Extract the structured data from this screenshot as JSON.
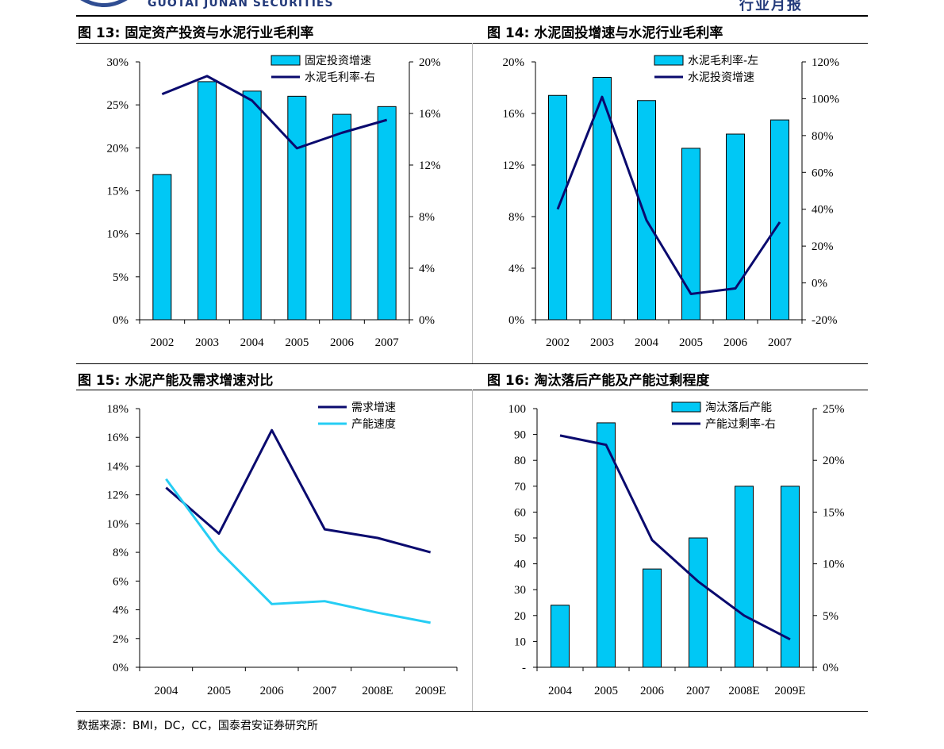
{
  "header": {
    "brand": "GUOTAI JUNAN SECURITIES",
    "report_type": "行业月报"
  },
  "colors": {
    "bar": "#00c8f5",
    "line_dark": "#0a0a6e",
    "line_light": "#25cdf4"
  },
  "source": "数据来源：BMI，DC，CC，国泰君安证券研究所",
  "chart_data": [
    {
      "type": "bar",
      "title_num": "图 13:",
      "title": "固定资产投资与水泥行业毛利率",
      "categories": [
        "2002",
        "2003",
        "2004",
        "2005",
        "2006",
        "2007"
      ],
      "series": [
        {
          "name": "固定投资增速",
          "kind": "bar",
          "axis": "left",
          "values": [
            16.9,
            27.7,
            26.6,
            26.0,
            23.9,
            24.8
          ]
        },
        {
          "name": "水泥毛利率-右",
          "kind": "line",
          "axis": "right",
          "values": [
            17.5,
            18.9,
            17.0,
            13.3,
            14.5,
            15.5
          ]
        }
      ],
      "left_axis": {
        "ylim": [
          0,
          30
        ],
        "ticks": [
          0,
          5,
          10,
          15,
          20,
          25,
          30
        ],
        "tick_labels": [
          "0%",
          "5%",
          "10%",
          "15%",
          "20%",
          "25%",
          "30%"
        ]
      },
      "right_axis": {
        "ylim": [
          0,
          20
        ],
        "ticks": [
          0,
          4,
          8,
          12,
          16,
          20
        ],
        "tick_labels": [
          "0%",
          "4%",
          "8%",
          "12%",
          "16%",
          "20%"
        ]
      },
      "legend": "top-right"
    },
    {
      "type": "bar",
      "title_num": "图 14:",
      "title": "水泥固投增速与水泥行业毛利率",
      "categories": [
        "2002",
        "2003",
        "2004",
        "2005",
        "2006",
        "2007"
      ],
      "series": [
        {
          "name": "水泥毛利率-左",
          "kind": "bar",
          "axis": "left",
          "values": [
            17.4,
            18.8,
            17.0,
            13.3,
            14.4,
            15.5
          ]
        },
        {
          "name": "水泥投资增速",
          "kind": "line",
          "axis": "right",
          "values": [
            40,
            101,
            34,
            -6,
            -3,
            33
          ]
        }
      ],
      "left_axis": {
        "ylim": [
          0,
          20
        ],
        "ticks": [
          0,
          4,
          8,
          12,
          16,
          20
        ],
        "tick_labels": [
          "0%",
          "4%",
          "8%",
          "12%",
          "16%",
          "20%"
        ]
      },
      "right_axis": {
        "ylim": [
          -20,
          120
        ],
        "ticks": [
          -20,
          0,
          20,
          40,
          60,
          80,
          100,
          120
        ],
        "tick_labels": [
          "-20%",
          "0%",
          "20%",
          "40%",
          "60%",
          "80%",
          "100%",
          "120%"
        ]
      },
      "legend": "top-right"
    },
    {
      "type": "line",
      "title_num": "图 15:",
      "title": "水泥产能及需求增速对比",
      "categories": [
        "2004",
        "2005",
        "2006",
        "2007",
        "2008E",
        "2009E"
      ],
      "series": [
        {
          "name": "需求增速",
          "kind": "line",
          "axis": "left",
          "values": [
            12.5,
            9.3,
            16.5,
            9.6,
            9.0,
            8.0
          ]
        },
        {
          "name": "产能速度",
          "kind": "line",
          "axis": "left",
          "values": [
            13.1,
            8.1,
            4.4,
            4.6,
            3.8,
            3.1
          ]
        }
      ],
      "left_axis": {
        "ylim": [
          0,
          18
        ],
        "ticks": [
          0,
          2,
          4,
          6,
          8,
          10,
          12,
          14,
          16,
          18
        ],
        "tick_labels": [
          "0%",
          "2%",
          "4%",
          "6%",
          "8%",
          "10%",
          "12%",
          "14%",
          "16%",
          "18%"
        ]
      },
      "legend": "top-right"
    },
    {
      "type": "bar",
      "title_num": "图 16:",
      "title": "淘汰落后产能及产能过剩程度",
      "categories": [
        "2004",
        "2005",
        "2006",
        "2007",
        "2008E",
        "2009E"
      ],
      "series": [
        {
          "name": "淘汰落后产能",
          "kind": "bar",
          "axis": "left",
          "values": [
            24,
            94.5,
            38,
            50,
            70,
            70
          ]
        },
        {
          "name": "产能过剩率-右",
          "kind": "line",
          "axis": "right",
          "values": [
            22.4,
            21.5,
            12.3,
            8.3,
            5.0,
            2.7
          ]
        }
      ],
      "left_axis": {
        "ylim": [
          0,
          100
        ],
        "ticks": [
          0,
          10,
          20,
          30,
          40,
          50,
          60,
          70,
          80,
          90,
          100
        ],
        "tick_labels": [
          "-",
          "10",
          "20",
          "30",
          "40",
          "50",
          "60",
          "70",
          "80",
          "90",
          "100"
        ]
      },
      "right_axis": {
        "ylim": [
          0,
          25
        ],
        "ticks": [
          0,
          5,
          10,
          15,
          20,
          25
        ],
        "tick_labels": [
          "0%",
          "5%",
          "10%",
          "15%",
          "20%",
          "25%"
        ]
      },
      "legend": "top-right"
    }
  ]
}
